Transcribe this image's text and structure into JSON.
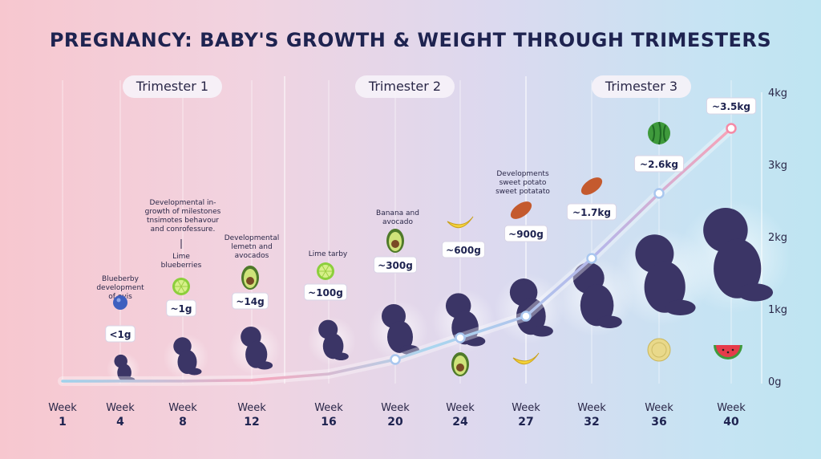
{
  "title": "PREGNANCY: BABY'S GROWTH & WEIGHT THROUGH TRIMESTERS",
  "trimesters": [
    "Trimester 1",
    "Trimester 2",
    "Trimester 3"
  ],
  "week_word": "Week",
  "chart_data": {
    "type": "line",
    "x": [
      1,
      4,
      8,
      12,
      16,
      20,
      24,
      27,
      32,
      36,
      40
    ],
    "y_kg": [
      0.0,
      0.001,
      0.001,
      0.014,
      0.1,
      0.3,
      0.6,
      0.9,
      1.7,
      2.6,
      3.5
    ],
    "xlabel": "Week",
    "ylim": [
      0,
      4
    ],
    "y_ticks": [
      "4kg",
      "3kg",
      "2kg",
      "1kg",
      "0g"
    ],
    "weight_labels": [
      "",
      "<1g",
      "~1g",
      "~14g",
      "~100g",
      "~300g",
      "~600g",
      "~900g",
      "~1.7kg",
      "~2.6kg",
      "~3.5kg"
    ],
    "notes": [
      {
        "week": 4,
        "lines": [
          "Blueberby",
          "development",
          "of ovis"
        ]
      },
      {
        "week": 8,
        "lines": [
          "Lime",
          "blueberries"
        ]
      },
      {
        "week": 8,
        "lines": [
          "Developmental in-",
          "growth of milestones",
          "tnsimotes behavour",
          "and conrofessure."
        ]
      },
      {
        "week": 12,
        "lines": [
          "Developmental",
          "lemetn and",
          "avocados"
        ]
      },
      {
        "week": 16,
        "lines": [
          "Lime tarby"
        ]
      },
      {
        "week": 20,
        "lines": [
          "Banana and",
          "avocado"
        ]
      },
      {
        "week": 27,
        "lines": [
          "Developments",
          "sweet potato",
          "sweet potatato"
        ]
      }
    ],
    "fruit_icons": [
      "blueberry-icon",
      "lime-icon",
      "avocado-icon",
      "lime-icon",
      "avocado-icon",
      "banana-icon",
      "avocado-icon",
      "sweet-potato-icon",
      "banana-icon",
      "sweet-potato-icon",
      "watermelon-icon",
      "melon-icon",
      "watermelon-icon"
    ],
    "grid": true,
    "colors": {
      "line_start": "#f5a3b4",
      "line_mid": "#9fd2ec",
      "line_end": "#f7a3b7",
      "baby": "#3b3566",
      "title": "#1e2350"
    }
  }
}
